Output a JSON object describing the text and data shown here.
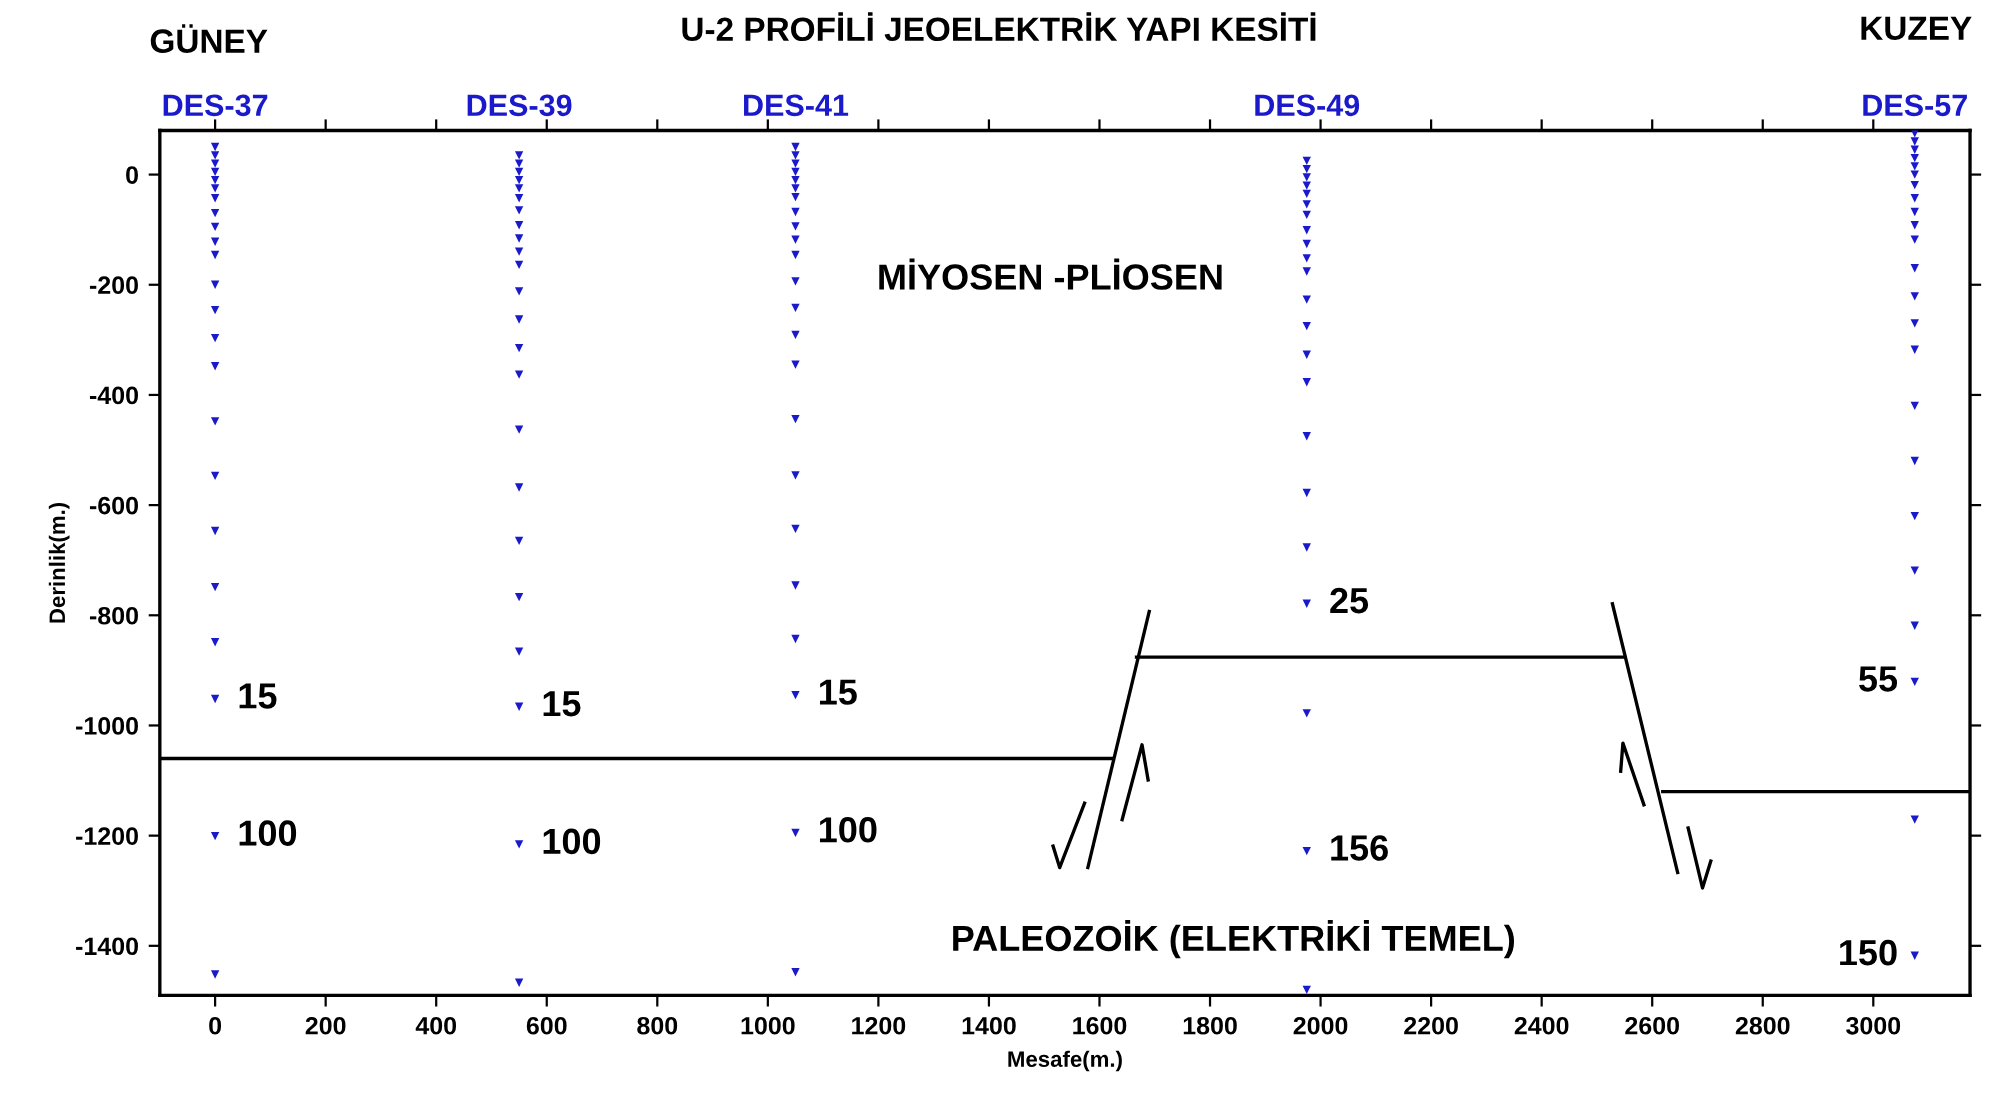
{
  "chart_data": {
    "type": "scatter",
    "title": "U-2 PROFİLİ JEOELEKTRİK YAPI KESİTİ",
    "xlabel": "Mesafe(m.)",
    "ylabel": "Derinlik(m.)",
    "xlim": [
      -100,
      3175
    ],
    "ylim": [
      -1490,
      80
    ],
    "xticks": [
      0,
      200,
      400,
      600,
      800,
      1000,
      1200,
      1400,
      1600,
      1800,
      2000,
      2200,
      2400,
      2600,
      2800,
      3000
    ],
    "yticks": [
      0,
      -200,
      -400,
      -600,
      -800,
      -1000,
      -1200,
      -1400
    ],
    "grid": false,
    "legend": false,
    "marker": "triangle",
    "series": [
      {
        "name": "DES-37",
        "color": "#1a1acc",
        "x": [
          0,
          0,
          0,
          0,
          0,
          0,
          0,
          0,
          0,
          0,
          0,
          0,
          0,
          0,
          0,
          0,
          0,
          0,
          0,
          0,
          0,
          0,
          0
        ],
        "values": [
          50,
          35,
          20,
          5,
          -10,
          -25,
          -43,
          -70,
          -95,
          -122,
          -146,
          -200,
          -246,
          -297,
          -348,
          -448,
          -547,
          -647,
          -749,
          -849,
          -952,
          -1201,
          -1452
        ]
      },
      {
        "name": "DES-39",
        "color": "#1a1acc",
        "x": [
          550,
          550,
          550,
          550,
          550,
          550,
          550,
          550,
          550,
          550,
          550,
          550,
          550,
          550,
          550,
          550,
          550,
          550,
          550,
          550,
          550,
          550,
          550
        ],
        "values": [
          35,
          20,
          5,
          -10,
          -25,
          -43,
          -65,
          -92,
          -116,
          -140,
          -164,
          -212,
          -263,
          -315,
          -363,
          -463,
          -568,
          -665,
          -767,
          -866,
          -966,
          -1216,
          -1467
        ]
      },
      {
        "name": "DES-41",
        "color": "#1a1acc",
        "x": [
          1050,
          1050,
          1050,
          1050,
          1050,
          1050,
          1050,
          1050,
          1050,
          1050,
          1050,
          1050,
          1050,
          1050,
          1050,
          1050,
          1050,
          1050,
          1050,
          1050,
          1050,
          1050,
          1050
        ],
        "values": [
          50,
          35,
          20,
          5,
          -10,
          -25,
          -41,
          -68,
          -94,
          -118,
          -146,
          -194,
          -242,
          -291,
          -345,
          -444,
          -546,
          -643,
          -746,
          -843,
          -945,
          -1195,
          -1448
        ]
      },
      {
        "name": "DES-49",
        "color": "#1a1acc",
        "x": [
          1975,
          1975,
          1975,
          1975,
          1975,
          1975,
          1975,
          1975,
          1975,
          1975,
          1975,
          1975,
          1975,
          1975,
          1975,
          1975,
          1975,
          1975,
          1975,
          1975,
          1975,
          1975
        ],
        "values": [
          25,
          10,
          -5,
          -20,
          -35,
          -54,
          -73,
          -101,
          -126,
          -152,
          -176,
          -227,
          -275,
          -327,
          -377,
          -475,
          -578,
          -677,
          -779,
          -978,
          -1228,
          -1480
        ]
      },
      {
        "name": "DES-57",
        "color": "#1a1acc",
        "x": [
          3075,
          3075,
          3075,
          3075,
          3075,
          3075,
          3075,
          3075,
          3075,
          3075,
          3075,
          3075,
          3075,
          3075,
          3075,
          3075,
          3075,
          3075,
          3075,
          3075,
          3075,
          3075,
          3075
        ],
        "values": [
          75,
          60,
          45,
          30,
          15,
          0,
          -19,
          -43,
          -68,
          -92,
          -118,
          -170,
          -221,
          -270,
          -318,
          -420,
          -520,
          -620,
          -719,
          -819,
          -921,
          -1171,
          -1418
        ]
      },
      {
        "type": "line",
        "marker": "none",
        "color": "#000000",
        "x": [
          -100,
          1623
        ],
        "values": [
          -1060,
          -1060
        ]
      },
      {
        "type": "line",
        "marker": "none",
        "color": "#000000",
        "x": [
          1579,
          1690
        ],
        "values": [
          -1258,
          -793
        ]
      },
      {
        "type": "line",
        "marker": "none",
        "color": "#000000",
        "x": [
          1667,
          2550
        ],
        "values": [
          -876,
          -876
        ]
      },
      {
        "type": "line",
        "marker": "none",
        "color": "#000000",
        "x": [
          2528,
          2646
        ],
        "values": [
          -779,
          -1267
        ]
      },
      {
        "type": "line",
        "marker": "none",
        "color": "#000000",
        "x": [
          2619,
          3175
        ],
        "values": [
          -1120,
          -1120
        ]
      },
      {
        "type": "line",
        "marker": "none",
        "color": "#000000",
        "x": [
          1516,
          1528,
          1573
        ],
        "values": [
          -1219,
          -1258,
          -1141
        ]
      },
      {
        "type": "line",
        "marker": "none",
        "color": "#000000",
        "x": [
          1641,
          1677,
          1688
        ],
        "values": [
          -1171,
          -1035,
          -1099
        ]
      },
      {
        "type": "line",
        "marker": "none",
        "color": "#000000",
        "x": [
          2543,
          2547,
          2585
        ],
        "values": [
          -1083,
          -1032,
          -1144
        ]
      },
      {
        "type": "line",
        "marker": "none",
        "color": "#000000",
        "x": [
          2665,
          2691,
          2706
        ],
        "values": [
          -1186,
          -1295,
          -1246
        ]
      }
    ],
    "annotations": [
      "GÜNEY",
      "KUZEY",
      "MİYOSEN -PLİOSEN",
      {
        "text": "15",
        "x": 0,
        "y": -952
      },
      {
        "text": "15",
        "x": 550,
        "y": -966
      },
      {
        "text": "15",
        "x": 1050,
        "y": -945
      },
      {
        "text": "100",
        "x": 0,
        "y": -1201
      },
      {
        "text": "100",
        "x": 550,
        "y": -1216
      },
      {
        "text": "100",
        "x": 1050,
        "y": -1195
      },
      {
        "text": "25",
        "x": 1975,
        "y": -779
      },
      {
        "text": "156",
        "x": 1975,
        "y": -1228
      },
      {
        "text": "55",
        "x": 3075,
        "y": -921
      },
      {
        "text": "150",
        "x": 3075,
        "y": -1418
      },
      "PALEOZOİK (ELEKTRİKİ TEMEL)"
    ]
  }
}
